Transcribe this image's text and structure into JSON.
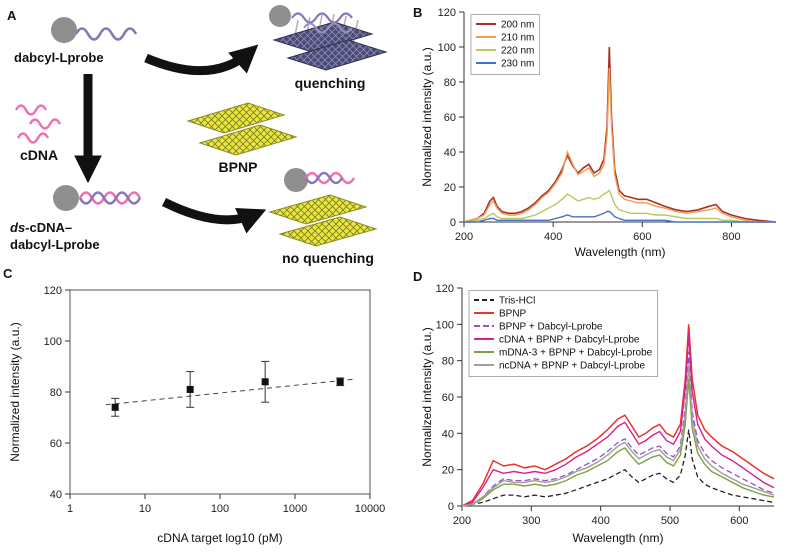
{
  "panels": {
    "a": {
      "letter": "A",
      "labels": {
        "probe": "dabcyl-Lprobe",
        "cdna": "cDNA",
        "bpnp": "BPNP",
        "quenching": "quenching",
        "duplex_italic": "ds",
        "duplex_rest": "-cDNA–",
        "duplex_line2": "dabcyl-Lprobe",
        "no_quenching": "no quenching"
      },
      "colors": {
        "probe_purple": "#8677b8",
        "cdna_pink": "#ef6eb4",
        "bpnp_yellow": "#e9e63e",
        "sphere_gray": "#8f8f8f",
        "lattice_navy": "#4b4b72",
        "arrow_black": "#111111"
      }
    },
    "b": {
      "letter": "B"
    },
    "c": {
      "letter": "C"
    },
    "d": {
      "letter": "D"
    }
  },
  "chart_data": [
    {
      "id": "chart-b",
      "type": "line",
      "title": "",
      "xlabel": "Wavelength (nm)",
      "ylabel": "Normalized intensity (a.u.)",
      "xlim": [
        200,
        900
      ],
      "ylim": [
        0,
        120
      ],
      "xticks": [
        200,
        400,
        600,
        800
      ],
      "yticks": [
        0,
        20,
        40,
        60,
        80,
        100,
        120
      ],
      "grid": false,
      "legend": {
        "position": "top-left",
        "boxed": true
      },
      "x": [
        200,
        215,
        230,
        245,
        258,
        266,
        274,
        285,
        300,
        315,
        330,
        345,
        360,
        375,
        390,
        405,
        420,
        432,
        444,
        456,
        468,
        480,
        492,
        504,
        514,
        521,
        526,
        531,
        538,
        548,
        560,
        575,
        590,
        610,
        630,
        650,
        675,
        700,
        725,
        750,
        765,
        780,
        800,
        830,
        860,
        900
      ],
      "series": [
        {
          "name": "200 nm",
          "color": "#a93226",
          "dash": null,
          "width": 1.6,
          "values": [
            0,
            1,
            2,
            5,
            12,
            14,
            9,
            6,
            5,
            5,
            6,
            8,
            11,
            15,
            18,
            23,
            30,
            38,
            32,
            28,
            31,
            33,
            28,
            30,
            36,
            55,
            100,
            60,
            30,
            18,
            15,
            14,
            13,
            13,
            11,
            9,
            7,
            6,
            7,
            9,
            10,
            6,
            4,
            2,
            1,
            0
          ]
        },
        {
          "name": "210 nm",
          "color": "#ef9e54",
          "dash": null,
          "width": 1.4,
          "values": [
            0,
            1,
            2,
            4,
            10,
            12,
            8,
            5,
            4,
            4,
            5,
            7,
            10,
            14,
            17,
            22,
            28,
            40,
            33,
            27,
            29,
            31,
            26,
            28,
            33,
            50,
            88,
            55,
            27,
            16,
            13,
            12,
            11,
            11,
            9,
            8,
            6,
            5,
            6,
            7,
            8,
            5,
            3,
            1,
            0,
            0
          ]
        },
        {
          "name": "220 nm",
          "color": "#b9c95e",
          "dash": null,
          "width": 1.4,
          "values": [
            0,
            0,
            1,
            2,
            4,
            5,
            3,
            2,
            2,
            2,
            2,
            3,
            4,
            6,
            8,
            10,
            13,
            16,
            14,
            12,
            13,
            14,
            13,
            14,
            16,
            17,
            18,
            15,
            10,
            7,
            6,
            5,
            5,
            5,
            4,
            4,
            3,
            2,
            2,
            2,
            2,
            1,
            1,
            0,
            0,
            0
          ]
        },
        {
          "name": "230 nm",
          "color": "#4472c4",
          "dash": null,
          "width": 1.4,
          "values": [
            0,
            0,
            0,
            1,
            2,
            2,
            1,
            1,
            1,
            1,
            1,
            1,
            1,
            1,
            1,
            2,
            3,
            4,
            3,
            3,
            3,
            3,
            3,
            4,
            5,
            6,
            6,
            5,
            3,
            2,
            1,
            1,
            1,
            1,
            1,
            1,
            0,
            0,
            0,
            0,
            0,
            0,
            0,
            0,
            0,
            0
          ]
        }
      ]
    },
    {
      "id": "chart-c",
      "type": "scatter",
      "title": "",
      "xlabel": "cDNA target log10 (pM)",
      "ylabel": "Normalized intensity (a.u.)",
      "xscale": "log",
      "xlim": [
        1,
        10000
      ],
      "ylim": [
        40,
        120
      ],
      "xticks": [
        1,
        10,
        100,
        1000,
        10000
      ],
      "yticks": [
        40,
        60,
        80,
        100,
        120
      ],
      "grid": false,
      "marker": {
        "shape": "square",
        "color": "#111111",
        "size": 7
      },
      "points": {
        "x": [
          4,
          40,
          400,
          4000
        ],
        "y": [
          74,
          81,
          84,
          84
        ],
        "yerr": [
          3.5,
          7,
          8,
          1.5
        ]
      },
      "trendline": {
        "x": [
          3,
          6000
        ],
        "y": [
          75,
          85
        ],
        "dash": "5 4",
        "color": "#444444"
      }
    },
    {
      "id": "chart-d",
      "type": "line",
      "title": "",
      "xlabel": "Wavelength (nm)",
      "ylabel": "Normalized intensity (a.u.)",
      "xlim": [
        200,
        650
      ],
      "ylim": [
        0,
        120
      ],
      "xticks": [
        200,
        300,
        400,
        500,
        600
      ],
      "yticks": [
        0,
        20,
        40,
        60,
        80,
        100,
        120
      ],
      "grid": false,
      "legend": {
        "position": "top-left",
        "boxed": true
      },
      "x": [
        200,
        215,
        230,
        245,
        260,
        275,
        290,
        305,
        320,
        335,
        350,
        365,
        380,
        395,
        410,
        425,
        435,
        445,
        455,
        465,
        475,
        485,
        495,
        505,
        515,
        522,
        527,
        532,
        540,
        550,
        560,
        575,
        590,
        605,
        620,
        635,
        650
      ],
      "series": [
        {
          "name": "Tris-HCl",
          "color": "#222222",
          "dash": "5 3",
          "width": 1.3,
          "values": [
            0,
            1,
            2,
            4,
            6,
            6,
            5,
            6,
            5,
            6,
            7,
            9,
            11,
            13,
            15,
            18,
            20,
            16,
            13,
            15,
            17,
            18,
            15,
            13,
            17,
            28,
            42,
            26,
            16,
            12,
            10,
            8,
            6,
            5,
            4,
            3,
            2
          ]
        },
        {
          "name": "BPNP",
          "color": "#e8342a",
          "dash": null,
          "width": 1.5,
          "values": [
            0,
            3,
            12,
            25,
            22,
            23,
            21,
            22,
            20,
            23,
            26,
            30,
            33,
            37,
            42,
            48,
            50,
            44,
            38,
            40,
            43,
            45,
            40,
            38,
            45,
            70,
            100,
            70,
            50,
            42,
            38,
            33,
            30,
            26,
            22,
            18,
            15
          ]
        },
        {
          "name": "BPNP + Dabcyl-Lprobe",
          "color": "#9b4fc8",
          "dash": "6 3",
          "width": 1.3,
          "values": [
            0,
            1,
            5,
            11,
            15,
            14,
            14,
            15,
            14,
            15,
            17,
            20,
            23,
            26,
            30,
            35,
            37,
            32,
            28,
            30,
            32,
            33,
            29,
            27,
            33,
            55,
            85,
            52,
            36,
            29,
            25,
            21,
            18,
            15,
            12,
            9,
            7
          ]
        },
        {
          "name": "cDNA + BPNP + Dabcyl-Lprobe",
          "color": "#d6218f",
          "dash": null,
          "width": 1.4,
          "values": [
            0,
            2,
            10,
            20,
            18,
            19,
            18,
            19,
            18,
            20,
            23,
            27,
            30,
            34,
            38,
            44,
            46,
            40,
            34,
            36,
            39,
            41,
            36,
            34,
            41,
            65,
            95,
            63,
            45,
            37,
            33,
            28,
            25,
            21,
            17,
            13,
            10
          ]
        },
        {
          "name": "mDNA-3 + BPNP + Dabcyl-Lprobe",
          "color": "#7ea23f",
          "dash": null,
          "width": 1.4,
          "values": [
            0,
            1,
            4,
            9,
            12,
            12,
            11,
            12,
            11,
            12,
            14,
            17,
            19,
            22,
            25,
            30,
            32,
            27,
            23,
            25,
            27,
            28,
            24,
            22,
            28,
            45,
            70,
            43,
            29,
            23,
            19,
            16,
            13,
            10,
            8,
            6,
            5
          ]
        },
        {
          "name": "ncDNA + BPNP + Dabcyl-Lprobe",
          "color": "#9e9e9e",
          "dash": null,
          "width": 1.4,
          "values": [
            0,
            1,
            5,
            10,
            14,
            13,
            13,
            14,
            13,
            14,
            16,
            19,
            21,
            24,
            28,
            33,
            35,
            30,
            26,
            28,
            30,
            31,
            27,
            25,
            31,
            50,
            78,
            48,
            33,
            26,
            22,
            18,
            15,
            12,
            10,
            8,
            6
          ]
        }
      ]
    }
  ]
}
